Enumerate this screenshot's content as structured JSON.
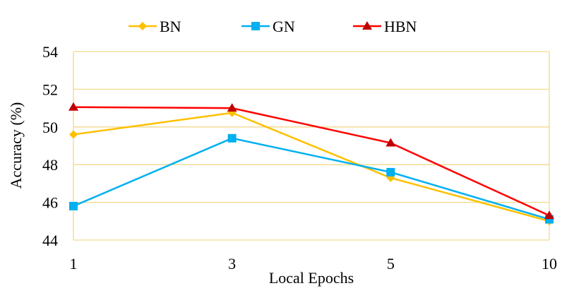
{
  "chart_data": {
    "type": "line",
    "title": "",
    "xlabel": "Local Epochs",
    "ylabel": "Accuracy (%)",
    "categories": [
      "1",
      "3",
      "5",
      "10"
    ],
    "ylim": [
      44,
      54
    ],
    "yticks": [
      44,
      46,
      48,
      50,
      52,
      54
    ],
    "grid": true,
    "legend": "top",
    "series": [
      {
        "name": "BN",
        "color": "#FFC000",
        "marker": "diamond",
        "values": [
          49.6,
          50.75,
          47.3,
          45.0
        ]
      },
      {
        "name": "GN",
        "color": "#00B0F0",
        "marker": "square",
        "values": [
          45.8,
          49.4,
          47.6,
          45.1
        ]
      },
      {
        "name": "HBN",
        "color": "#FF0000",
        "markerColor": "#C00000",
        "marker": "triangle",
        "values": [
          51.05,
          51.0,
          49.15,
          45.3
        ]
      }
    ]
  }
}
